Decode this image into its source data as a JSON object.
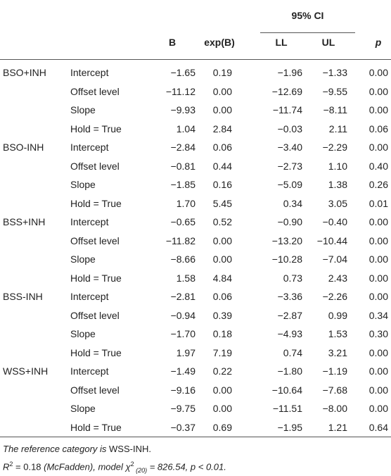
{
  "table": {
    "ci_header": "95% CI",
    "columns": [
      "B",
      "exp(B)",
      "LL",
      "UL",
      "p"
    ],
    "rows": [
      [
        "BSO+INH",
        "Intercept",
        "−1.65",
        "0.19",
        "−1.96",
        "−1.33",
        "0.00"
      ],
      [
        null,
        "Offset level",
        "−11.12",
        "0.00",
        "−12.69",
        "−9.55",
        "0.00"
      ],
      [
        null,
        "Slope",
        "−9.93",
        "0.00",
        "−11.74",
        "−8.11",
        "0.00"
      ],
      [
        null,
        "Hold = True",
        "1.04",
        "2.84",
        "−0.03",
        "2.11",
        "0.06"
      ],
      [
        "BSO-INH",
        "Intercept",
        "−2.84",
        "0.06",
        "−3.40",
        "−2.29",
        "0.00"
      ],
      [
        null,
        "Offset level",
        "−0.81",
        "0.44",
        "−2.73",
        "1.10",
        "0.40"
      ],
      [
        null,
        "Slope",
        "−1.85",
        "0.16",
        "−5.09",
        "1.38",
        "0.26"
      ],
      [
        null,
        "Hold = True",
        "1.70",
        "5.45",
        "0.34",
        "3.05",
        "0.01"
      ],
      [
        "BSS+INH",
        "Intercept",
        "−0.65",
        "0.52",
        "−0.90",
        "−0.40",
        "0.00"
      ],
      [
        null,
        "Offset level",
        "−11.82",
        "0.00",
        "−13.20",
        "−10.44",
        "0.00"
      ],
      [
        null,
        "Slope",
        "−8.66",
        "0.00",
        "−10.28",
        "−7.04",
        "0.00"
      ],
      [
        null,
        "Hold = True",
        "1.58",
        "4.84",
        "0.73",
        "2.43",
        "0.00"
      ],
      [
        "BSS-INH",
        "Intercept",
        "−2.81",
        "0.06",
        "−3.36",
        "−2.26",
        "0.00"
      ],
      [
        null,
        "Offset level",
        "−0.94",
        "0.39",
        "−2.87",
        "0.99",
        "0.34"
      ],
      [
        null,
        "Slope",
        "−1.70",
        "0.18",
        "−4.93",
        "1.53",
        "0.30"
      ],
      [
        null,
        "Hold = True",
        "1.97",
        "7.19",
        "0.74",
        "3.21",
        "0.00"
      ],
      [
        "WSS+INH",
        "Intercept",
        "−1.49",
        "0.22",
        "−1.80",
        "−1.19",
        "0.00"
      ],
      [
        null,
        "Offset level",
        "−9.16",
        "0.00",
        "−10.64",
        "−7.68",
        "0.00"
      ],
      [
        null,
        "Slope",
        "−9.75",
        "0.00",
        "−11.51",
        "−8.00",
        "0.00"
      ],
      [
        null,
        "Hold = True",
        "−0.37",
        "0.69",
        "−1.95",
        "1.21",
        "0.64"
      ]
    ],
    "notes": [
      [
        {
          "text": "The reference category is ",
          "style": "italic"
        },
        {
          "text": "WSS-INH.",
          "style": "normal"
        }
      ],
      [
        {
          "text": "R",
          "style": "italic"
        },
        {
          "text": "2",
          "style": "sup"
        },
        {
          "text": " = 0.18 ",
          "style": "normal"
        },
        {
          "text": "(McFadden), model χ",
          "style": "italic"
        },
        {
          "text": "2",
          "style": "sup"
        },
        {
          "text": " (20)",
          "style": "sub"
        },
        {
          "text": " = 826.54, ",
          "style": "italic"
        },
        {
          "text": "p < 0.01.",
          "style": "italic"
        }
      ]
    ]
  }
}
